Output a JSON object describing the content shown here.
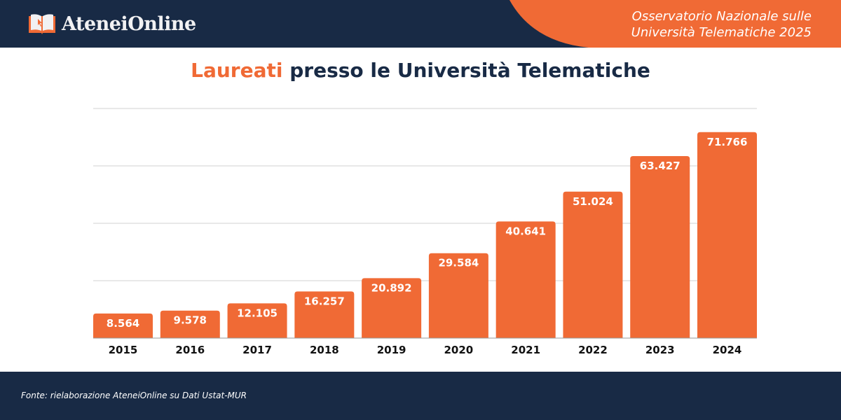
{
  "header": {
    "logo_text": "AteneiOnline",
    "observatory_line1": "Osservatorio Nazionale sulle",
    "observatory_line2": "Università Telematiche 2025"
  },
  "colors": {
    "navy": "#182a45",
    "orange": "#f06a35",
    "grid": "#d0d0d0"
  },
  "chart_data": {
    "type": "bar",
    "title_highlight": "Laureati",
    "title_rest": " presso le Università Telematiche",
    "categories": [
      "2015",
      "2016",
      "2017",
      "2018",
      "2019",
      "2020",
      "2021",
      "2022",
      "2023",
      "2024"
    ],
    "values": [
      8564,
      9578,
      12105,
      16257,
      20892,
      29584,
      40641,
      51024,
      63427,
      71766
    ],
    "labels": [
      "8.564",
      "9.578",
      "12.105",
      "16.257",
      "20.892",
      "29.584",
      "40.641",
      "51.024",
      "63.427",
      "71.766"
    ],
    "ylim": [
      0,
      80000
    ],
    "grid_step": 20000,
    "grid": true,
    "y_tick_labels_shown": false
  },
  "footer": {
    "source": "Fonte: rielaborazione AteneiOnline su Dati Ustat-MUR"
  }
}
